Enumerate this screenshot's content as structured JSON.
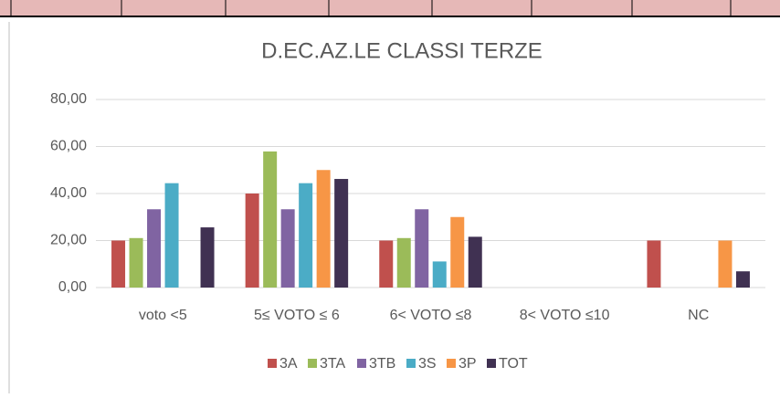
{
  "chart_data": {
    "type": "bar",
    "title": "D.EC.AZ.LE CLASSI TERZE",
    "categories": [
      "voto <5",
      "5≤ VOTO ≤ 6",
      "6< VOTO ≤8",
      "8< VOTO ≤10",
      "NC"
    ],
    "series": [
      {
        "name": "3A",
        "color": "#c0504d",
        "values": [
          20,
          40,
          20,
          0,
          20
        ]
      },
      {
        "name": "3TA",
        "color": "#9bbb59",
        "values": [
          21.05,
          57.9,
          21.05,
          0,
          0
        ]
      },
      {
        "name": "3TB",
        "color": "#8064a2",
        "values": [
          33.3,
          33.3,
          33.3,
          0,
          0
        ]
      },
      {
        "name": "3S",
        "color": "#4bacc6",
        "values": [
          44.4,
          44.4,
          11.1,
          0,
          0
        ]
      },
      {
        "name": "3P",
        "color": "#f79646",
        "values": [
          0,
          50,
          30,
          0,
          20
        ]
      },
      {
        "name": "TOT",
        "color": "#403152",
        "values": [
          25.6,
          46.2,
          21.6,
          0,
          6.9
        ]
      }
    ],
    "ylim": [
      0,
      80
    ],
    "yticks": [
      {
        "value": 0,
        "label": "0,00"
      },
      {
        "value": 20,
        "label": "20,00"
      },
      {
        "value": 40,
        "label": "40,00"
      },
      {
        "value": 60,
        "label": "60,00"
      },
      {
        "value": 80,
        "label": "80,00"
      }
    ],
    "grid": true,
    "legend": "bottom"
  }
}
